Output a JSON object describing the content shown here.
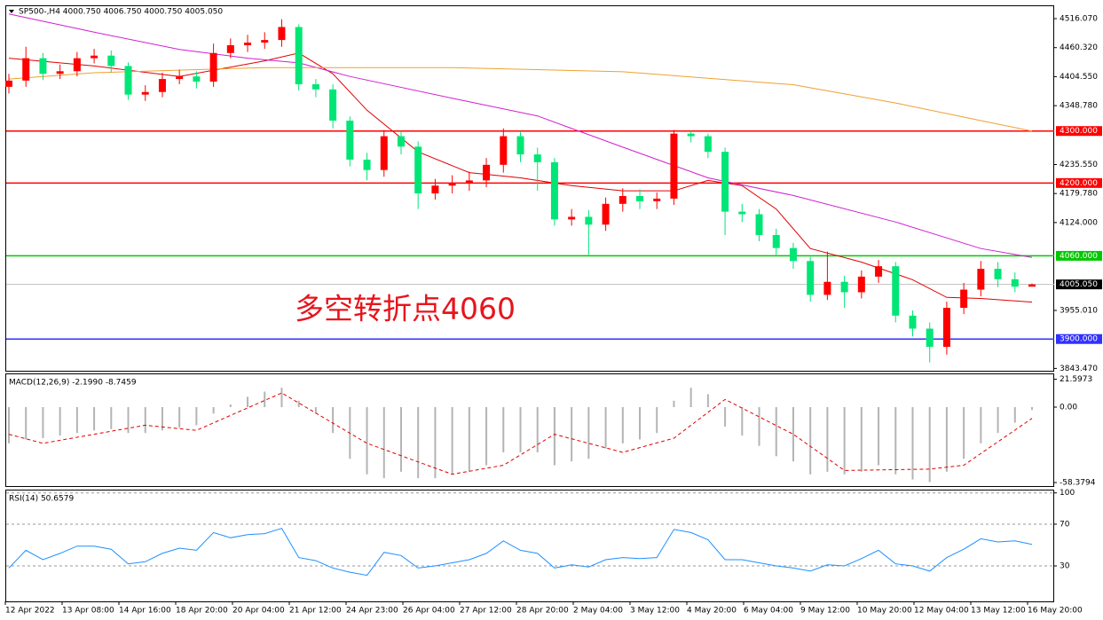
{
  "chart_data": [
    {
      "type": "candlestick",
      "title": "SP500-,H4 4000.750 4006.750 4000.750 4005.050",
      "open": [
        4385,
        4397,
        4440,
        4410,
        4415,
        4440,
        4445,
        4425,
        4370,
        4375,
        4400,
        4405,
        4395,
        4450,
        4465,
        4470,
        4475,
        4500,
        4390,
        4380,
        4320,
        4245,
        4225,
        4290,
        4270,
        4180,
        4195,
        4200,
        4205,
        4235,
        4290,
        4255,
        4240,
        4130,
        4135,
        4120,
        4160,
        4175,
        4165,
        4170,
        4295,
        4290,
        4260,
        4145,
        4140,
        4100,
        4075,
        4050,
        3985,
        4010,
        3990,
        4020,
        4040,
        3945,
        3920,
        3885,
        3960,
        3995,
        4035,
        4015,
        4000.75
      ],
      "high": [
        4410,
        4462,
        4450,
        4428,
        4452,
        4458,
        4455,
        4432,
        4388,
        4412,
        4418,
        4415,
        4468,
        4478,
        4485,
        4490,
        4515,
        4505,
        4400,
        4390,
        4328,
        4258,
        4302,
        4300,
        4280,
        4208,
        4215,
        4222,
        4248,
        4305,
        4298,
        4268,
        4248,
        4150,
        4148,
        4172,
        4190,
        4188,
        4182,
        4302,
        4300,
        4295,
        4268,
        4160,
        4150,
        4112,
        4085,
        4058,
        4068,
        4022,
        4032,
        4052,
        4048,
        3955,
        3932,
        3972,
        4008,
        4050,
        4048,
        4028,
        4006.75
      ],
      "low": [
        4372,
        4385,
        4398,
        4400,
        4405,
        4430,
        4412,
        4360,
        4358,
        4365,
        4390,
        4382,
        4385,
        4440,
        4452,
        4458,
        4462,
        4378,
        4365,
        4305,
        4232,
        4205,
        4212,
        4255,
        4150,
        4168,
        4180,
        4185,
        4192,
        4220,
        4240,
        4185,
        4118,
        4118,
        4062,
        4108,
        4145,
        4150,
        4150,
        4158,
        4278,
        4248,
        4100,
        4125,
        4088,
        4062,
        4035,
        3972,
        3975,
        3960,
        3978,
        4008,
        3932,
        3905,
        3855,
        3870,
        3948,
        3982,
        4000,
        3990,
        4000.75
      ],
      "close": [
        4397,
        4440,
        4410,
        4415,
        4440,
        4445,
        4425,
        4370,
        4375,
        4400,
        4405,
        4395,
        4450,
        4465,
        4470,
        4475,
        4500,
        4390,
        4380,
        4320,
        4245,
        4225,
        4290,
        4270,
        4180,
        4195,
        4200,
        4205,
        4235,
        4290,
        4255,
        4240,
        4130,
        4135,
        4120,
        4160,
        4175,
        4165,
        4170,
        4295,
        4290,
        4260,
        4145,
        4140,
        4100,
        4075,
        4050,
        3985,
        4010,
        3990,
        4020,
        4040,
        3945,
        3920,
        3885,
        3960,
        3995,
        4035,
        4015,
        4000.75,
        4005.05
      ],
      "up_color": "#ff0000",
      "down_color": "#00e676",
      "ylim": [
        3839,
        4540
      ],
      "yticks": [
        {
          "value": 4516.07,
          "label": "4516.070"
        },
        {
          "value": 4460.32,
          "label": "4460.320"
        },
        {
          "value": 4404.55,
          "label": "4404.550"
        },
        {
          "value": 4348.78,
          "label": "4348.780"
        },
        {
          "value": 4235.55,
          "label": "4235.550"
        },
        {
          "value": 4179.78,
          "label": "4179.780"
        },
        {
          "value": 4124,
          "label": "4124.000"
        },
        {
          "value": 3955.01,
          "label": "3955.010"
        },
        {
          "value": 3843.47,
          "label": "3843.470"
        }
      ],
      "overlays": [
        {
          "color": "#e00000",
          "x": [
            0,
            5,
            10,
            15,
            17,
            19,
            21,
            24,
            27,
            30,
            33,
            36,
            39,
            41,
            43,
            45,
            47,
            50,
            53,
            55,
            57,
            60
          ],
          "values": [
            4440,
            4425,
            4405,
            4435,
            4450,
            4410,
            4340,
            4260,
            4220,
            4210,
            4195,
            4185,
            4185,
            4205,
            4195,
            4150,
            4074,
            4048,
            4014,
            3980,
            3978,
            3971
          ]
        },
        {
          "color": "#d020d0",
          "x": [
            0,
            5,
            10,
            14,
            17,
            20,
            26,
            31,
            36,
            41,
            46,
            52,
            57,
            60
          ],
          "values": [
            4525,
            4490,
            4457,
            4440,
            4431,
            4405,
            4363,
            4329,
            4269,
            4210,
            4176,
            4125,
            4074,
            4057
          ]
        },
        {
          "color": "#f0a030",
          "x": [
            0,
            5,
            15,
            26,
            36,
            46,
            52,
            57,
            60
          ],
          "values": [
            4400,
            4412,
            4422,
            4422,
            4414,
            4389,
            4354,
            4320,
            4300
          ]
        }
      ],
      "levels": [
        {
          "value": 4300,
          "label": "4300.000",
          "color": "#ff0000"
        },
        {
          "value": 4200,
          "label": "4200.000",
          "color": "#ff0000"
        },
        {
          "value": 4060,
          "label": "4060.000",
          "color": "#00c800"
        },
        {
          "value": 3900,
          "label": "3900.000",
          "color": "#3030ff"
        }
      ],
      "last_price": {
        "value": 4005.05,
        "label": "4005.050"
      },
      "annotation": "多空转折点4060"
    },
    {
      "type": "macd",
      "title": "MACD(12,26,9) -2.1990 -8.7459",
      "histogram": [
        -28,
        -25,
        -24,
        -22,
        -20,
        -18,
        -17,
        -20,
        -20,
        -18,
        -16,
        -14,
        -5,
        2,
        8,
        12,
        15,
        5,
        -5,
        -20,
        -40,
        -52,
        -55,
        -50,
        -55,
        -55,
        -52,
        -50,
        -45,
        -35,
        -35,
        -35,
        -45,
        -42,
        -40,
        -32,
        -28,
        -25,
        -20,
        5,
        15,
        10,
        -15,
        -22,
        -30,
        -38,
        -42,
        -52,
        -50,
        -52,
        -50,
        -45,
        -52,
        -56,
        -58,
        -50,
        -40,
        -28,
        -20,
        -12,
        -2.199
      ],
      "histogram_color": "#b4b4b4",
      "signal": {
        "color": "#e00000",
        "x": [
          0,
          2,
          8,
          11,
          16,
          21,
          26,
          29,
          32,
          36,
          39,
          42,
          46,
          49,
          54,
          56,
          60
        ],
        "values": [
          -21,
          -28,
          -14,
          -18,
          11,
          -28,
          -52,
          -45,
          -21,
          -35,
          -24,
          6,
          -21,
          -49,
          -48,
          -45,
          -8.7459
        ]
      },
      "ylim": [
        -61.1,
        25.4
      ],
      "yticks": [
        21.5973,
        {
          "value": 0,
          "label": "0.00"
        },
        -58.3794
      ]
    },
    {
      "type": "rsi",
      "title": "RSI(14) 50.6579",
      "values": [
        28,
        45,
        36,
        42,
        49,
        49,
        46,
        32,
        34,
        42,
        47,
        45,
        62,
        57,
        60,
        61,
        66,
        38,
        35,
        28,
        24,
        21,
        43,
        40,
        28,
        30,
        33,
        36,
        42,
        54,
        45,
        42,
        28,
        31,
        29,
        36,
        38,
        37,
        38,
        65,
        62,
        55,
        36,
        36,
        33,
        30,
        28,
        25,
        31,
        30,
        37,
        45,
        32,
        30,
        25,
        38,
        46,
        56,
        53,
        54,
        50.6579
      ],
      "color": "#1e90ff",
      "ylim": [
        -4,
        102.3
      ],
      "yticks": [
        30,
        70,
        100
      ],
      "grid": "dashed"
    }
  ],
  "time_labels": [
    "12 Apr 2022",
    "13 Apr 08:00",
    "14 Apr 16:00",
    "18 Apr 20:00",
    "20 Apr 04:00",
    "21 Apr 12:00",
    "24 Apr 23:00",
    "26 Apr 04:00",
    "27 Apr 12:00",
    "28 Apr 20:00",
    "2 May 04:00",
    "3 May 12:00",
    "4 May 20:00",
    "6 May 04:00",
    "9 May 12:00",
    "10 May 20:00",
    "12 May 04:00",
    "13 May 12:00",
    "16 May 20:00"
  ]
}
